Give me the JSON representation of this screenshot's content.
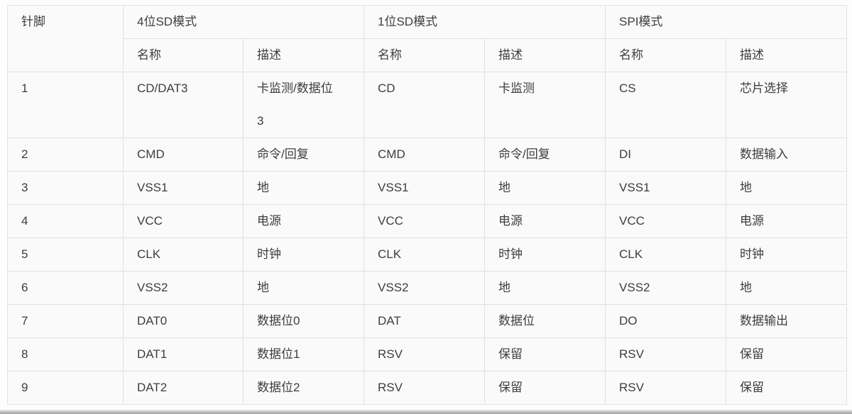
{
  "table": {
    "pin_header": "针脚",
    "groups": [
      {
        "label": "4位SD模式",
        "sub_name": "名称",
        "sub_desc": "描述"
      },
      {
        "label": "1位SD模式",
        "sub_name": "名称",
        "sub_desc": "描述"
      },
      {
        "label": "SPI模式",
        "sub_name": "名称",
        "sub_desc": "描述"
      }
    ],
    "rows": [
      {
        "pin": "1",
        "sd4_name": "CD/DAT3",
        "sd4_desc": "卡监测/数据位3",
        "sd1_name": "CD",
        "sd1_desc": "卡监测",
        "spi_name": "CS",
        "spi_desc": "芯片选择"
      },
      {
        "pin": "2",
        "sd4_name": "CMD",
        "sd4_desc": "命令/回复",
        "sd1_name": "CMD",
        "sd1_desc": "命令/回复",
        "spi_name": "DI",
        "spi_desc": "数据输入"
      },
      {
        "pin": "3",
        "sd4_name": "VSS1",
        "sd4_desc": "地",
        "sd1_name": "VSS1",
        "sd1_desc": "地",
        "spi_name": "VSS1",
        "spi_desc": "地"
      },
      {
        "pin": "4",
        "sd4_name": "VCC",
        "sd4_desc": "电源",
        "sd1_name": "VCC",
        "sd1_desc": "电源",
        "spi_name": "VCC",
        "spi_desc": "电源"
      },
      {
        "pin": "5",
        "sd4_name": "CLK",
        "sd4_desc": "时钟",
        "sd1_name": "CLK",
        "sd1_desc": "时钟",
        "spi_name": "CLK",
        "spi_desc": "时钟"
      },
      {
        "pin": "6",
        "sd4_name": "VSS2",
        "sd4_desc": "地",
        "sd1_name": "VSS2",
        "sd1_desc": "地",
        "spi_name": "VSS2",
        "spi_desc": "地"
      },
      {
        "pin": "7",
        "sd4_name": "DAT0",
        "sd4_desc": "数据位0",
        "sd1_name": "DAT",
        "sd1_desc": "数据位",
        "spi_name": "DO",
        "spi_desc": "数据输出"
      },
      {
        "pin": "8",
        "sd4_name": "DAT1",
        "sd4_desc": "数据位1",
        "sd1_name": "RSV",
        "sd1_desc": "保留",
        "spi_name": "RSV",
        "spi_desc": "保留"
      },
      {
        "pin": "9",
        "sd4_name": "DAT2",
        "sd4_desc": "数据位2",
        "sd1_name": "RSV",
        "sd1_desc": "保留",
        "spi_name": "RSV",
        "spi_desc": "保留"
      }
    ]
  },
  "colors": {
    "border": "#e1e1e3",
    "cell_background": "#fafafa",
    "page_background": "#fdfdfd",
    "text": "#3d3d3d",
    "bottom_bar": "#9f9f9f"
  }
}
